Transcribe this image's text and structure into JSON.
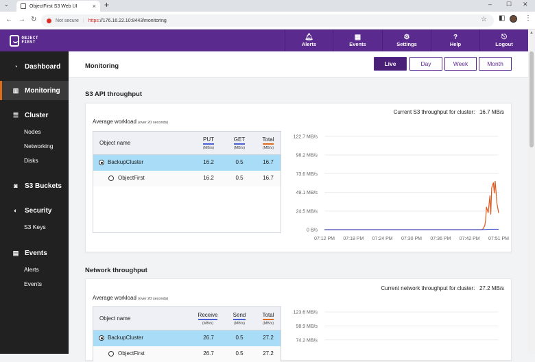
{
  "browser": {
    "tab_title": "ObjectFirst S3 Web UI",
    "not_secure": "Not secure",
    "url_scheme": "https",
    "url_rest": "://176.16.22.10:8443/monitoring"
  },
  "app": {
    "logo_line1": "OBJECT",
    "logo_line2": "FIRST",
    "topnav": [
      {
        "label": "Alerts",
        "icon": "bell-icon"
      },
      {
        "label": "Events",
        "icon": "calendar-icon"
      },
      {
        "label": "Settings",
        "icon": "gear-icon"
      },
      {
        "label": "Help",
        "icon": "question-icon"
      },
      {
        "label": "Logout",
        "icon": "logout-icon"
      }
    ]
  },
  "sidebar": {
    "dashboard": "Dashboard",
    "monitoring": "Monitoring",
    "cluster": "Cluster",
    "nodes": "Nodes",
    "networking": "Networking",
    "disks": "Disks",
    "s3_buckets": "S3 Buckets",
    "security": "Security",
    "s3_keys": "S3 Keys",
    "events": "Events",
    "alerts": "Alerts",
    "events_sub": "Events"
  },
  "page": {
    "title": "Monitoring",
    "ranges": [
      "Live",
      "Day",
      "Week",
      "Month"
    ],
    "selected_range": "Live"
  },
  "s3": {
    "title": "S3 API throughput",
    "current_label": "Current S3 throughput for cluster:",
    "current_value": "16.7 MB/s",
    "avg_label": "Average workload",
    "avg_sub": "(over 20 seconds)",
    "columns": {
      "name": "Object name",
      "c1": "PUT",
      "c2": "GET",
      "c3": "Total",
      "unit": "(MB/s)"
    },
    "rows": [
      {
        "name": "BackupCluster",
        "c1": "16.2",
        "c2": "0.5",
        "c3": "16.7",
        "selected": true
      },
      {
        "name": "ObjectFirst",
        "c1": "16.2",
        "c2": "0.5",
        "c3": "16.7",
        "selected": false
      }
    ]
  },
  "network": {
    "title": "Network throughput",
    "current_label": "Current network throughput for cluster:",
    "current_value": "27.2 MB/s",
    "avg_label": "Average workload",
    "avg_sub": "(over 20 seconds)",
    "columns": {
      "name": "Object name",
      "c1": "Receive",
      "c2": "Send",
      "c3": "Total",
      "unit": "(MB/s)"
    },
    "rows": [
      {
        "name": "BackupCluster",
        "c1": "26.7",
        "c2": "0.5",
        "c3": "27.2",
        "selected": true
      },
      {
        "name": "ObjectFirst",
        "c1": "26.7",
        "c2": "0.5",
        "c3": "27.2",
        "selected": false
      }
    ]
  },
  "colors": {
    "brand": "#5b2a8e",
    "accent": "#e06b1b",
    "selected_row": "#a9dcf7",
    "put_series": "#e0561b",
    "get_series": "#4a5fd1"
  },
  "chart_data": [
    {
      "type": "line",
      "ylim": [
        0,
        122.7
      ],
      "y_ticks": [
        "0 B/s",
        "24.5 MB/s",
        "49.1 MB/s",
        "73.6 MB/s",
        "98.2 MB/s",
        "122.7 MB/s"
      ],
      "y_tick_values": [
        0,
        24.5,
        49.1,
        73.6,
        98.2,
        122.7
      ],
      "x_ticks": [
        "07:12 PM",
        "07:18 PM",
        "07:24 PM",
        "07:30 PM",
        "07:36 PM",
        "07:42 PM",
        "07:51 PM"
      ],
      "grid": true,
      "series": [
        {
          "color": "#e0561b",
          "x": [
            0,
            0.9,
            0.91,
            0.92,
            0.925,
            0.93,
            0.94,
            0.95,
            0.955,
            0.96,
            0.97,
            0.975,
            0.98,
            0.985,
            0.99,
            1.0
          ],
          "y": [
            0,
            0,
            1,
            5,
            12,
            30,
            22,
            45,
            20,
            55,
            62,
            48,
            64,
            50,
            35,
            22
          ]
        },
        {
          "color": "#4a5fd1",
          "x": [
            0,
            0.9,
            0.95,
            1.0
          ],
          "y": [
            0,
            0,
            0.5,
            0.5
          ]
        }
      ]
    },
    {
      "type": "line",
      "ylim": [
        0,
        123.6
      ],
      "y_ticks": [
        "74.2 MB/s",
        "98.9 MB/s",
        "123.6 MB/s"
      ],
      "y_tick_values": [
        74.2,
        98.9,
        123.6
      ],
      "grid": true,
      "series": []
    }
  ]
}
